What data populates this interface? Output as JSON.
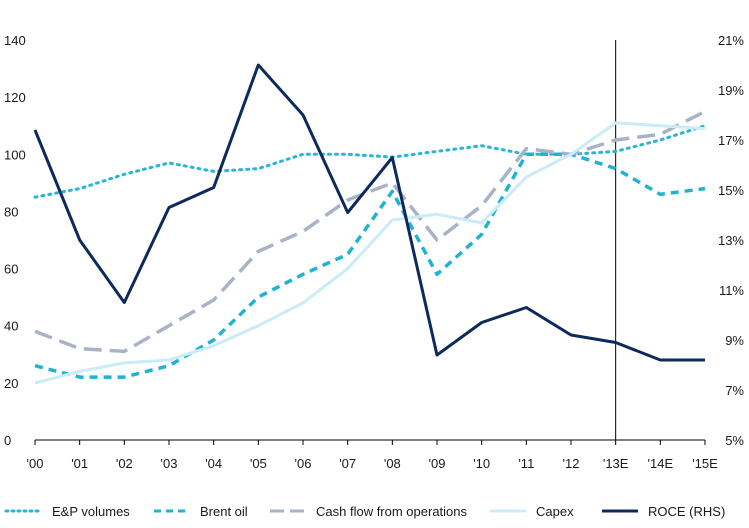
{
  "chart_data": {
    "type": "line",
    "categories": [
      "'00",
      "'01",
      "'02",
      "'03",
      "'04",
      "'05",
      "'06",
      "'07",
      "'08",
      "'09",
      "'10",
      "'11",
      "'12",
      "'13E",
      "'14E",
      "'15E"
    ],
    "y_left": {
      "ylim": [
        0,
        140
      ],
      "ticks": [
        0,
        20,
        40,
        60,
        80,
        100,
        120,
        140
      ]
    },
    "y_right": {
      "ylim": [
        5,
        21
      ],
      "ticks": [
        "5%",
        "7%",
        "9%",
        "11%",
        "13%",
        "15%",
        "17%",
        "19%",
        "21%"
      ],
      "tick_values": [
        5,
        7,
        9,
        11,
        13,
        15,
        17,
        19,
        21
      ]
    },
    "forecast_marker": "'13E",
    "series": [
      {
        "name": "E&P volumes",
        "axis": "left",
        "style": "dotted",
        "color": "#29b6d6",
        "values": [
          85,
          88,
          93,
          97,
          94,
          95,
          100,
          100,
          99,
          101,
          103,
          100,
          100,
          101,
          105,
          110
        ]
      },
      {
        "name": "Brent oil",
        "axis": "left",
        "style": "dashed",
        "color": "#1fb3d1",
        "values": [
          26,
          22,
          22,
          26,
          35,
          50,
          58,
          65,
          87,
          58,
          72,
          100,
          100,
          95,
          86,
          88
        ]
      },
      {
        "name": "Cash flow from operations",
        "axis": "left",
        "style": "longdash",
        "color": "#a9b3c7",
        "values": [
          38,
          32,
          31,
          40,
          49,
          66,
          73,
          84,
          90,
          70,
          82,
          102,
          100,
          105,
          107,
          115
        ]
      },
      {
        "name": "Capex",
        "axis": "left",
        "style": "solid",
        "color": "#c9ecf6",
        "values": [
          20,
          24,
          27,
          28,
          33,
          40,
          48,
          60,
          77,
          79,
          76,
          92,
          100,
          111,
          110,
          109
        ]
      },
      {
        "name": "ROCE (RHS)",
        "axis": "right",
        "style": "solid",
        "color": "#0d2a5c",
        "values": [
          17.4,
          13.0,
          10.5,
          14.3,
          15.1,
          20.0,
          18.0,
          14.1,
          16.3,
          8.4,
          9.7,
          10.3,
          9.2,
          8.9,
          8.2,
          8.2
        ]
      }
    ]
  },
  "legend": {
    "items": [
      {
        "label": "E&P volumes"
      },
      {
        "label": "Brent oil"
      },
      {
        "label": "Cash flow from operations"
      },
      {
        "label": "Capex"
      },
      {
        "label": "ROCE (RHS)"
      }
    ]
  }
}
